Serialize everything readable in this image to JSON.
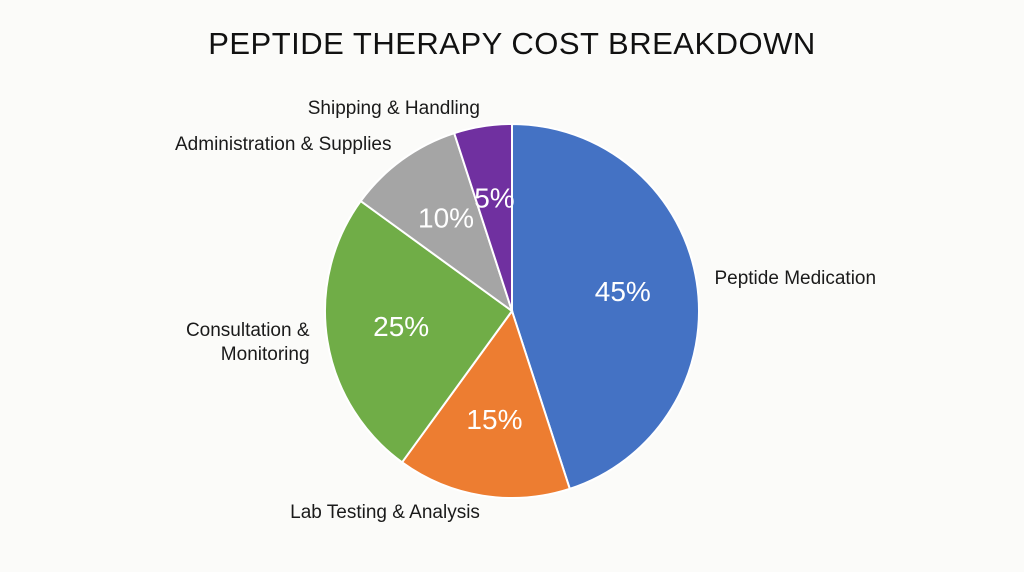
{
  "chart_data": {
    "type": "pie",
    "title": "PEPTIDE THERAPY COST BREAKDOWN",
    "categories": [
      "Peptide Medication",
      "Lab Testing & Analysis",
      "Consultation & Monitoring",
      "Administration & Supplies",
      "Shipping & Handling"
    ],
    "values": [
      45,
      15,
      25,
      10,
      5
    ],
    "value_labels": [
      "45%",
      "15%",
      "25%",
      "10%",
      "5%"
    ],
    "colors": [
      "#4472c4",
      "#ed7d31",
      "#70ad47",
      "#a5a5a5",
      "#7030a0"
    ]
  }
}
